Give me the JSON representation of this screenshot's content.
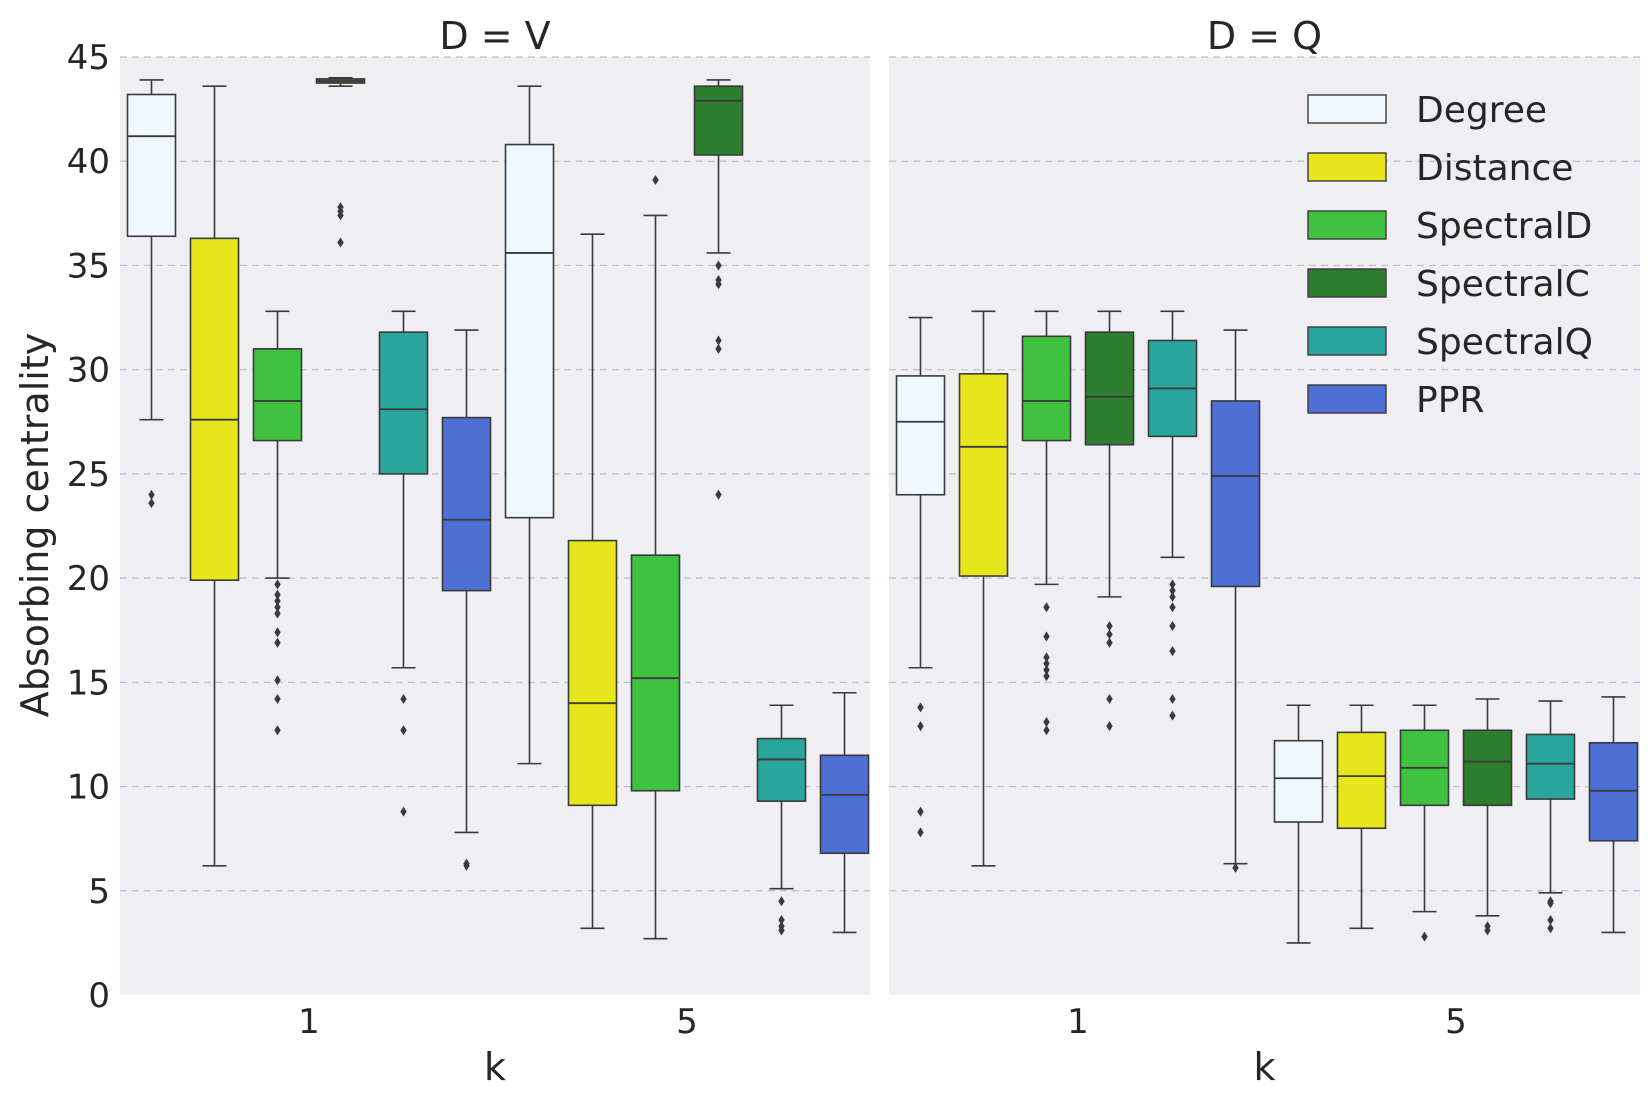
{
  "chart_data": {
    "type": "box",
    "ylabel": "Absorbing centrality",
    "xlabel": "k",
    "ylim": [
      0,
      45
    ],
    "yticks": [
      "0",
      "5",
      "10",
      "15",
      "20",
      "25",
      "30",
      "35",
      "40",
      "45"
    ],
    "categories": [
      "1",
      "5"
    ],
    "grid": true,
    "legend_position": "top-right",
    "series_names": [
      "Degree",
      "Distance",
      "SpectralD",
      "SpectralC",
      "SpectralQ",
      "PPR"
    ],
    "series_colors": [
      "#f0f8ff",
      "#e6e61a",
      "#3fc23f",
      "#2e7d2e",
      "#2aa59b",
      "#4d6fd6"
    ],
    "panels": [
      {
        "title": "D = V",
        "groups": [
          {
            "k": "1",
            "boxes": [
              {
                "series": "Degree",
                "whisker_low": 27.6,
                "q1": 36.4,
                "median": 41.2,
                "q3": 43.2,
                "whisker_high": 43.9,
                "outliers": [
                  23.6,
                  24.0
                ]
              },
              {
                "series": "Distance",
                "whisker_low": 6.2,
                "q1": 19.9,
                "median": 27.6,
                "q3": 36.3,
                "whisker_high": 43.6,
                "outliers": []
              },
              {
                "series": "SpectralD",
                "whisker_low": 20.0,
                "q1": 26.6,
                "median": 28.5,
                "q3": 31.0,
                "whisker_high": 32.8,
                "outliers": [
                  19.7,
                  19.2,
                  18.9,
                  18.6,
                  18.3,
                  17.4,
                  16.9,
                  15.1,
                  14.2,
                  12.7
                ]
              },
              {
                "series": "SpectralC",
                "whisker_low": 43.6,
                "q1": 43.75,
                "median": 43.85,
                "q3": 43.95,
                "whisker_high": 44.0,
                "outliers": [
                  37.8,
                  37.6,
                  37.4,
                  36.1
                ]
              },
              {
                "series": "SpectralQ",
                "whisker_low": 15.7,
                "q1": 25.0,
                "median": 28.1,
                "q3": 31.8,
                "whisker_high": 32.8,
                "outliers": [
                  14.2,
                  12.7,
                  8.8
                ]
              },
              {
                "series": "PPR",
                "whisker_low": 7.8,
                "q1": 19.4,
                "median": 22.8,
                "q3": 27.7,
                "whisker_high": 31.9,
                "outliers": [
                  6.3,
                  6.2
                ]
              }
            ]
          },
          {
            "k": "5",
            "boxes": [
              {
                "series": "Degree",
                "whisker_low": 11.1,
                "q1": 22.9,
                "median": 35.6,
                "q3": 40.8,
                "whisker_high": 43.6,
                "outliers": []
              },
              {
                "series": "Distance",
                "whisker_low": 3.2,
                "q1": 9.1,
                "median": 14.0,
                "q3": 21.8,
                "whisker_high": 36.5,
                "outliers": []
              },
              {
                "series": "SpectralD",
                "whisker_low": 2.7,
                "q1": 9.8,
                "median": 15.2,
                "q3": 21.1,
                "whisker_high": 37.4,
                "outliers": [
                  39.1
                ]
              },
              {
                "series": "SpectralC",
                "whisker_low": 35.6,
                "q1": 40.3,
                "median": 42.9,
                "q3": 43.6,
                "whisker_high": 43.9,
                "outliers": [
                  35.0,
                  34.3,
                  34.1,
                  31.4,
                  31.0,
                  24.0
                ]
              },
              {
                "series": "SpectralQ",
                "whisker_low": 5.1,
                "q1": 9.3,
                "median": 11.3,
                "q3": 12.3,
                "whisker_high": 13.9,
                "outliers": [
                  4.5,
                  3.6,
                  3.3,
                  3.1
                ]
              },
              {
                "series": "PPR",
                "whisker_low": 3.0,
                "q1": 6.8,
                "median": 9.6,
                "q3": 11.5,
                "whisker_high": 14.5,
                "outliers": []
              }
            ]
          }
        ]
      },
      {
        "title": "D = Q",
        "groups": [
          {
            "k": "1",
            "boxes": [
              {
                "series": "Degree",
                "whisker_low": 15.7,
                "q1": 24.0,
                "median": 27.5,
                "q3": 29.7,
                "whisker_high": 32.5,
                "outliers": [
                  13.8,
                  12.9,
                  8.8,
                  7.8
                ]
              },
              {
                "series": "Distance",
                "whisker_low": 6.2,
                "q1": 20.1,
                "median": 26.3,
                "q3": 29.8,
                "whisker_high": 32.8,
                "outliers": []
              },
              {
                "series": "SpectralD",
                "whisker_low": 19.7,
                "q1": 26.6,
                "median": 28.5,
                "q3": 31.6,
                "whisker_high": 32.8,
                "outliers": [
                  18.6,
                  17.2,
                  16.2,
                  15.9,
                  15.6,
                  15.3,
                  13.1,
                  12.7
                ]
              },
              {
                "series": "SpectralC",
                "whisker_low": 19.1,
                "q1": 26.4,
                "median": 28.7,
                "q3": 31.8,
                "whisker_high": 32.8,
                "outliers": [
                  17.7,
                  17.3,
                  16.9,
                  14.2,
                  12.9
                ]
              },
              {
                "series": "SpectralQ",
                "whisker_low": 21.0,
                "q1": 26.8,
                "median": 29.1,
                "q3": 31.4,
                "whisker_high": 32.8,
                "outliers": [
                  19.7,
                  19.4,
                  19.1,
                  18.6,
                  17.7,
                  16.5,
                  14.2,
                  13.4
                ]
              },
              {
                "series": "PPR",
                "whisker_low": 6.3,
                "q1": 19.6,
                "median": 24.9,
                "q3": 28.5,
                "whisker_high": 31.9,
                "outliers": [
                  6.1
                ]
              }
            ]
          },
          {
            "k": "5",
            "boxes": [
              {
                "series": "Degree",
                "whisker_low": 2.5,
                "q1": 8.3,
                "median": 10.4,
                "q3": 12.2,
                "whisker_high": 13.9,
                "outliers": []
              },
              {
                "series": "Distance",
                "whisker_low": 3.2,
                "q1": 8.0,
                "median": 10.5,
                "q3": 12.6,
                "whisker_high": 13.9,
                "outliers": []
              },
              {
                "series": "SpectralD",
                "whisker_low": 4.0,
                "q1": 9.1,
                "median": 10.9,
                "q3": 12.7,
                "whisker_high": 13.9,
                "outliers": [
                  2.8
                ]
              },
              {
                "series": "SpectralC",
                "whisker_low": 3.8,
                "q1": 9.1,
                "median": 11.2,
                "q3": 12.7,
                "whisker_high": 14.2,
                "outliers": [
                  3.3,
                  3.1
                ]
              },
              {
                "series": "SpectralQ",
                "whisker_low": 4.9,
                "q1": 9.4,
                "median": 11.1,
                "q3": 12.5,
                "whisker_high": 14.1,
                "outliers": [
                  4.5,
                  4.4,
                  3.6,
                  3.2
                ]
              },
              {
                "series": "PPR",
                "whisker_low": 3.0,
                "q1": 7.4,
                "median": 9.8,
                "q3": 12.1,
                "whisker_high": 14.3,
                "outliers": []
              }
            ]
          }
        ]
      }
    ]
  }
}
